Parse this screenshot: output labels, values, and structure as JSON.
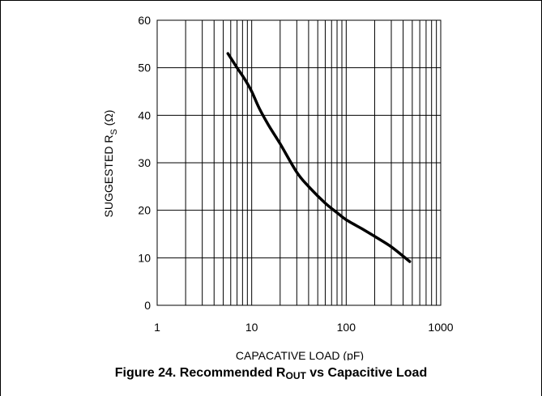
{
  "chart_data": {
    "type": "line",
    "x_scale": "log",
    "y_scale": "linear",
    "xlabel": "CAPACATIVE LOAD (pF)",
    "ylabel": "SUGGESTED R_S (Ω)",
    "ylabel_parts": {
      "before": "SUGGESTED R",
      "sub": "S",
      "after": " (Ω)"
    },
    "xlim": [
      1,
      1000
    ],
    "ylim": [
      0,
      60
    ],
    "x_ticks": [
      1,
      10,
      100,
      1000
    ],
    "x_tick_labels": [
      "1",
      "10",
      "100",
      "1000"
    ],
    "y_ticks": [
      0,
      10,
      20,
      30,
      40,
      50,
      60
    ],
    "y_tick_labels": [
      "0",
      "10",
      "20",
      "30",
      "40",
      "50",
      "60"
    ],
    "grid": true,
    "series": [
      {
        "x": [
          5.6,
          7,
          8.5,
          10,
          12,
          15,
          20,
          30,
          40,
          60,
          80,
          100,
          150,
          200,
          300,
          470
        ],
        "y": [
          53,
          50,
          47.5,
          45,
          41.5,
          38,
          34,
          28,
          25,
          21.5,
          19.5,
          18,
          16,
          14.5,
          12.3,
          9.2
        ]
      }
    ]
  },
  "caption": {
    "before": "Figure 24. Recommended R",
    "sub": "OUT",
    "after": " vs Capacitive Load"
  }
}
